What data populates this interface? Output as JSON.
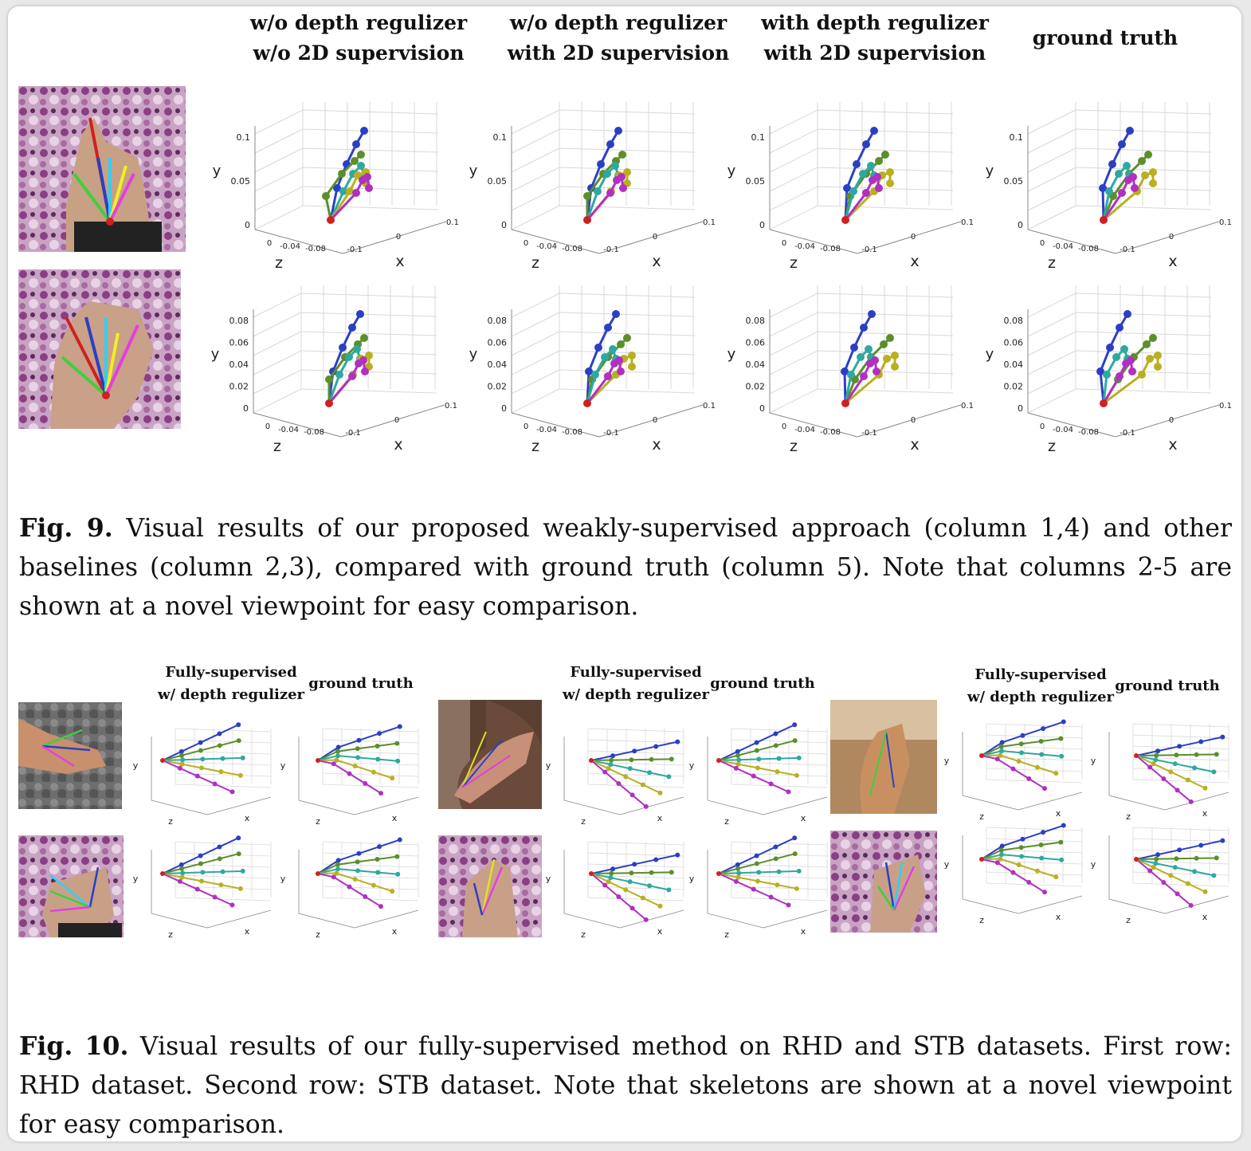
{
  "fig9": {
    "headers": [
      "w/o depth regulizer\nw/o 2D supervision",
      "w/o depth regulizer\nwith 2D supervision",
      "with depth regulizer\nwith 2D supervision",
      "ground truth"
    ],
    "axes": {
      "y_label": "y",
      "z_label": "z",
      "x_label": "x",
      "row1_y_ticks": [
        "0.1",
        "0.05",
        "0"
      ],
      "row2_y_ticks": [
        "0.08",
        "0.06",
        "0.04",
        "0.02",
        "0"
      ],
      "z_ticks": [
        "0",
        "-0.04",
        "-0.08"
      ],
      "x_ticks": [
        "-0.1",
        "0",
        "0.1"
      ]
    },
    "caption_label": "Fig. 9.",
    "caption_text": "Visual results of our proposed weakly-supervised approach (column 1,4) and other baselines (column 2,3), compared with ground truth (column 5). Note that columns 2-5 are shown at a novel viewpoint for easy comparison."
  },
  "fig10": {
    "headers": [
      "Fully-supervised\nw/ depth regulizer",
      "ground truth",
      "Fully-supervised\nw/ depth regulizer",
      "ground truth",
      "Fully-supervised\nw/ depth regulizer",
      "ground truth"
    ],
    "axes": {
      "y_label": "y",
      "z_label": "z",
      "x_label": "x"
    },
    "caption_label": "Fig. 10.",
    "caption_text": "Visual results of our fully-supervised method on RHD and STB datasets. First row: RHD dataset. Second row: STB dataset. Note that skeletons are shown at a novel viewpoint for easy comparison."
  },
  "colors": {
    "thumb": "#2b3fc4",
    "index": "#5a8f2a",
    "middle": "#2fa8a0",
    "ring": "#b8b020",
    "pinky": "#b030c0",
    "root": "#d02020",
    "grid": "#d8d8d8"
  }
}
